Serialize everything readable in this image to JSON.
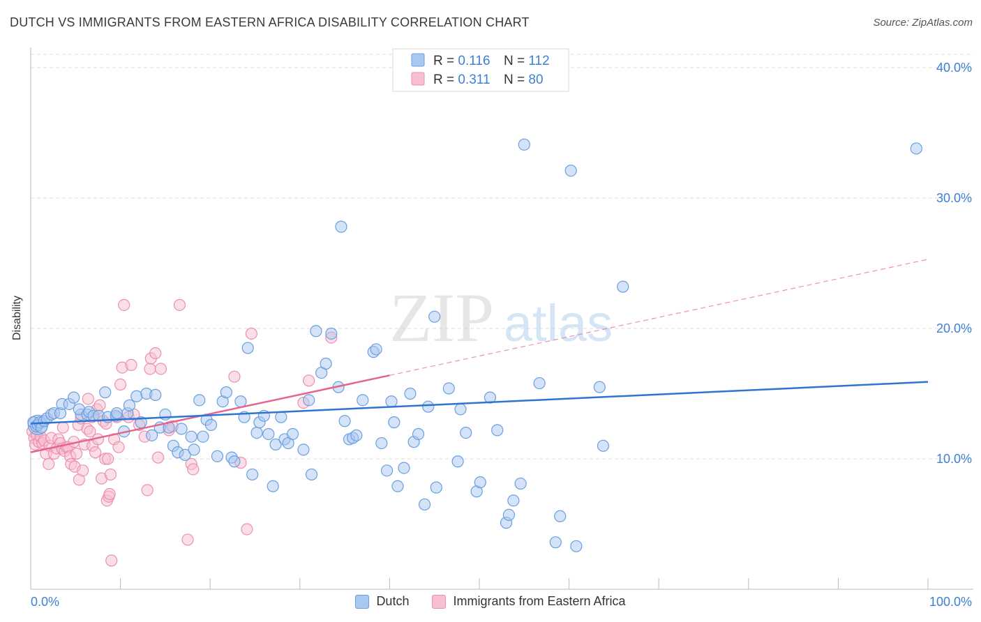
{
  "header": {
    "title": "DUTCH VS IMMIGRANTS FROM EASTERN AFRICA DISABILITY CORRELATION CHART",
    "source": "Source: ZipAtlas.com"
  },
  "watermark": {
    "zip": "ZIP",
    "atlas": "atlas"
  },
  "colors": {
    "dutch_fill": "#a9c8f0",
    "dutch_stroke": "#6a9fde",
    "dutch_line": "#2f74d0",
    "imm_fill": "#f8bfd0",
    "imm_stroke": "#ec8fae",
    "imm_line": "#e5648f",
    "tick_label": "#3d7fd6",
    "grid": "#dcdcdc"
  },
  "legend_top": {
    "rows": [
      {
        "r_label": "R = ",
        "r_value": "0.116",
        "n_label": "N = ",
        "n_value": "112"
      },
      {
        "r_label": "R = ",
        "r_value": "0.311",
        "n_label": "N = ",
        "n_value": "80"
      }
    ]
  },
  "legend_bottom": {
    "dutch": "Dutch",
    "imm": "Immigrants from Eastern Africa"
  },
  "chart_data": {
    "type": "scatter",
    "title": "DUTCH VS IMMIGRANTS FROM EASTERN AFRICA DISABILITY CORRELATION CHART",
    "xlabel": "",
    "ylabel": "Disability",
    "xlim": [
      0,
      100
    ],
    "ylim": [
      0,
      40
    ],
    "x_tick_labels": [
      "0.0%",
      "100.0%"
    ],
    "y_ticks": [
      10,
      20,
      30,
      40
    ],
    "y_tick_labels": [
      "10.0%",
      "20.0%",
      "30.0%",
      "40.0%"
    ],
    "grid": true,
    "legend_position": "top-center",
    "series": [
      {
        "name": "Dutch",
        "R": 0.116,
        "N": 112,
        "trend": {
          "x": [
            0,
            100
          ],
          "y": [
            12.7,
            15.9
          ]
        },
        "points": [
          [
            0.3,
            12.8
          ],
          [
            0.6,
            12.5
          ],
          [
            0.8,
            12.6
          ],
          [
            1.0,
            12.8
          ],
          [
            1.2,
            12.4
          ],
          [
            1.5,
            12.9
          ],
          [
            1.8,
            13.1
          ],
          [
            2.3,
            13.4
          ],
          [
            2.6,
            13.5
          ],
          [
            3.3,
            13.5
          ],
          [
            3.5,
            14.2
          ],
          [
            4.3,
            14.2
          ],
          [
            4.8,
            14.7
          ],
          [
            5.6,
            13.4
          ],
          [
            5.4,
            13.8
          ],
          [
            6.3,
            13.4
          ],
          [
            6.5,
            13.6
          ],
          [
            7.0,
            13.3
          ],
          [
            7.6,
            13.3
          ],
          [
            8.3,
            15.1
          ],
          [
            8.6,
            13.2
          ],
          [
            9.5,
            13.3
          ],
          [
            9.6,
            13.5
          ],
          [
            10.4,
            12.1
          ],
          [
            10.8,
            13.5
          ],
          [
            11.0,
            14.1
          ],
          [
            11.8,
            14.8
          ],
          [
            12.3,
            12.8
          ],
          [
            12.9,
            15.0
          ],
          [
            13.5,
            11.8
          ],
          [
            13.9,
            14.9
          ],
          [
            14.4,
            12.4
          ],
          [
            15.0,
            13.4
          ],
          [
            15.4,
            12.4
          ],
          [
            15.9,
            11.0
          ],
          [
            16.4,
            10.5
          ],
          [
            16.8,
            12.3
          ],
          [
            17.2,
            10.3
          ],
          [
            17.9,
            11.7
          ],
          [
            18.2,
            10.7
          ],
          [
            18.8,
            14.5
          ],
          [
            19.2,
            11.7
          ],
          [
            19.6,
            13.0
          ],
          [
            20.1,
            12.6
          ],
          [
            20.8,
            10.2
          ],
          [
            21.4,
            14.4
          ],
          [
            21.8,
            15.1
          ],
          [
            22.4,
            10.1
          ],
          [
            22.7,
            9.8
          ],
          [
            23.4,
            14.4
          ],
          [
            23.8,
            13.2
          ],
          [
            24.2,
            18.5
          ],
          [
            24.7,
            8.8
          ],
          [
            25.2,
            12.0
          ],
          [
            25.5,
            12.8
          ],
          [
            26.0,
            13.3
          ],
          [
            26.5,
            11.9
          ],
          [
            27.0,
            7.9
          ],
          [
            27.3,
            11.1
          ],
          [
            27.9,
            13.2
          ],
          [
            28.3,
            11.5
          ],
          [
            28.7,
            11.2
          ],
          [
            29.2,
            11.9
          ],
          [
            30.4,
            10.7
          ],
          [
            31.0,
            14.5
          ],
          [
            31.3,
            8.8
          ],
          [
            31.8,
            19.8
          ],
          [
            32.4,
            16.6
          ],
          [
            32.9,
            17.3
          ],
          [
            33.5,
            19.6
          ],
          [
            34.3,
            15.5
          ],
          [
            34.6,
            27.8
          ],
          [
            35.0,
            12.9
          ],
          [
            35.5,
            11.5
          ],
          [
            35.9,
            11.6
          ],
          [
            36.3,
            11.8
          ],
          [
            37.0,
            14.5
          ],
          [
            38.2,
            18.2
          ],
          [
            38.5,
            18.4
          ],
          [
            39.1,
            11.2
          ],
          [
            39.7,
            9.1
          ],
          [
            40.2,
            14.4
          ],
          [
            40.5,
            12.8
          ],
          [
            40.9,
            7.9
          ],
          [
            41.6,
            9.3
          ],
          [
            42.3,
            15.0
          ],
          [
            42.7,
            11.3
          ],
          [
            43.2,
            11.9
          ],
          [
            43.9,
            6.5
          ],
          [
            44.3,
            14.0
          ],
          [
            45.0,
            20.9
          ],
          [
            45.2,
            7.8
          ],
          [
            46.6,
            15.4
          ],
          [
            47.6,
            9.8
          ],
          [
            47.9,
            13.8
          ],
          [
            48.5,
            12.0
          ],
          [
            49.7,
            7.5
          ],
          [
            50.1,
            8.2
          ],
          [
            51.2,
            14.7
          ],
          [
            52.0,
            12.2
          ],
          [
            53.0,
            5.1
          ],
          [
            53.3,
            5.7
          ],
          [
            53.8,
            6.8
          ],
          [
            54.6,
            8.1
          ],
          [
            55.0,
            34.1
          ],
          [
            56.7,
            15.8
          ],
          [
            58.5,
            3.6
          ],
          [
            59.0,
            5.6
          ],
          [
            60.2,
            32.1
          ],
          [
            60.8,
            3.3
          ],
          [
            63.4,
            15.5
          ],
          [
            63.8,
            11.0
          ],
          [
            66.0,
            23.2
          ],
          [
            98.7,
            33.8
          ]
        ]
      },
      {
        "name": "Immigrants from Eastern Africa",
        "R": 0.311,
        "N": 80,
        "trend_solid": {
          "x": [
            0,
            40
          ],
          "y": [
            10.5,
            16.4
          ]
        },
        "trend_dashed": {
          "x": [
            40,
            100
          ],
          "y": [
            16.4,
            25.3
          ]
        },
        "points": [
          [
            0.2,
            12.1
          ],
          [
            0.4,
            11.6
          ],
          [
            0.5,
            11.1
          ],
          [
            0.7,
            11.8
          ],
          [
            0.9,
            11.3
          ],
          [
            1.1,
            11.7
          ],
          [
            1.3,
            11.2
          ],
          [
            1.5,
            11.4
          ],
          [
            1.7,
            10.4
          ],
          [
            2.0,
            9.6
          ],
          [
            2.1,
            11.0
          ],
          [
            2.3,
            11.6
          ],
          [
            2.6,
            10.4
          ],
          [
            2.9,
            10.8
          ],
          [
            3.1,
            11.5
          ],
          [
            3.3,
            11.2
          ],
          [
            3.5,
            10.8
          ],
          [
            3.6,
            12.4
          ],
          [
            3.8,
            10.6
          ],
          [
            4.0,
            10.9
          ],
          [
            4.2,
            10.9
          ],
          [
            4.4,
            10.2
          ],
          [
            4.5,
            9.6
          ],
          [
            4.8,
            11.3
          ],
          [
            4.9,
            9.4
          ],
          [
            5.1,
            10.4
          ],
          [
            5.3,
            12.6
          ],
          [
            5.4,
            8.4
          ],
          [
            5.6,
            13.1
          ],
          [
            5.8,
            9.1
          ],
          [
            6.0,
            11.1
          ],
          [
            6.3,
            12.3
          ],
          [
            6.4,
            14.6
          ],
          [
            6.6,
            12.1
          ],
          [
            6.8,
            13.2
          ],
          [
            6.9,
            11.0
          ],
          [
            7.2,
            10.5
          ],
          [
            7.4,
            13.8
          ],
          [
            7.5,
            11.5
          ],
          [
            7.7,
            14.1
          ],
          [
            7.9,
            8.5
          ],
          [
            8.1,
            12.9
          ],
          [
            8.3,
            10.0
          ],
          [
            8.4,
            12.7
          ],
          [
            8.5,
            6.8
          ],
          [
            8.6,
            10.0
          ],
          [
            8.7,
            7.1
          ],
          [
            8.8,
            7.3
          ],
          [
            8.9,
            8.8
          ],
          [
            9.3,
            11.5
          ],
          [
            9.6,
            13.2
          ],
          [
            9.8,
            10.9
          ],
          [
            10.0,
            15.7
          ],
          [
            10.2,
            17.0
          ],
          [
            10.4,
            21.8
          ],
          [
            10.9,
            13.2
          ],
          [
            11.2,
            17.2
          ],
          [
            11.5,
            13.4
          ],
          [
            12.1,
            12.6
          ],
          [
            12.7,
            11.7
          ],
          [
            13.0,
            7.6
          ],
          [
            13.3,
            16.9
          ],
          [
            13.4,
            17.7
          ],
          [
            13.9,
            18.1
          ],
          [
            14.2,
            10.1
          ],
          [
            14.5,
            16.9
          ],
          [
            15.4,
            12.2
          ],
          [
            15.8,
            12.5
          ],
          [
            16.6,
            21.8
          ],
          [
            17.5,
            3.8
          ],
          [
            17.9,
            9.6
          ],
          [
            18.1,
            9.2
          ],
          [
            22.7,
            16.3
          ],
          [
            23.4,
            9.7
          ],
          [
            24.1,
            4.6
          ],
          [
            24.6,
            19.6
          ],
          [
            30.4,
            14.3
          ],
          [
            31.0,
            16.0
          ],
          [
            33.5,
            19.3
          ],
          [
            9.0,
            2.2
          ]
        ]
      }
    ]
  }
}
